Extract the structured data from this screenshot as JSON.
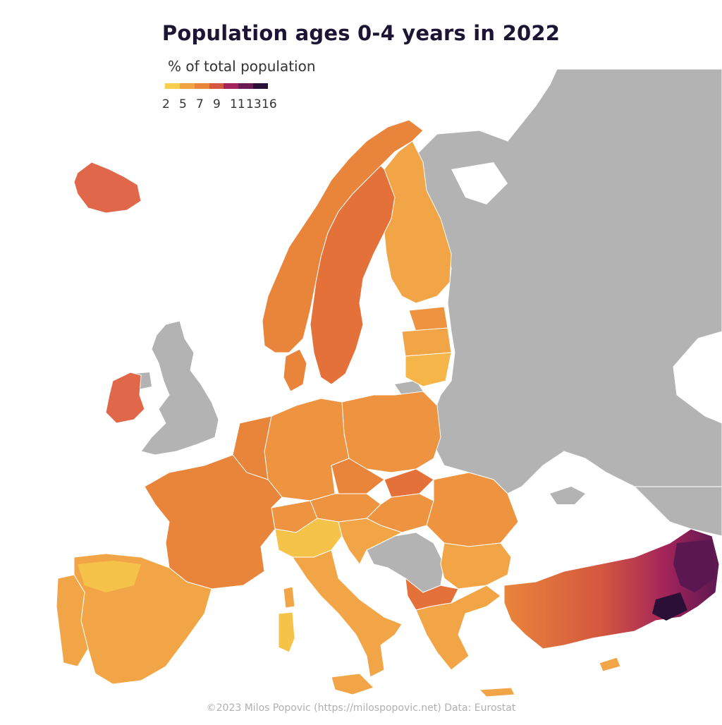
{
  "map": {
    "title": "Population ages 0-4 years in 2022",
    "subtitle": "% of total population",
    "legend": {
      "ticks": [
        "2",
        "5",
        "7",
        "9",
        "11",
        "13",
        "16"
      ],
      "colors": [
        "#f8d04e",
        "#f0a43f",
        "#e8853b",
        "#d4573f",
        "#a3245a",
        "#6b1a55",
        "#2a1037"
      ]
    },
    "credit": "©2023 Milos Popovic (https://milospopovic.net) Data: Eurostat",
    "colors": {
      "no_data": "#b3b3b3",
      "border": "#ffffff",
      "low": "#f6c34a",
      "mid_low": "#f2a546",
      "mid": "#ee9340",
      "mid_high": "#e5713a",
      "high": "#c93f4e",
      "very_high": "#7d1e5a",
      "max": "#2a1037"
    }
  }
}
